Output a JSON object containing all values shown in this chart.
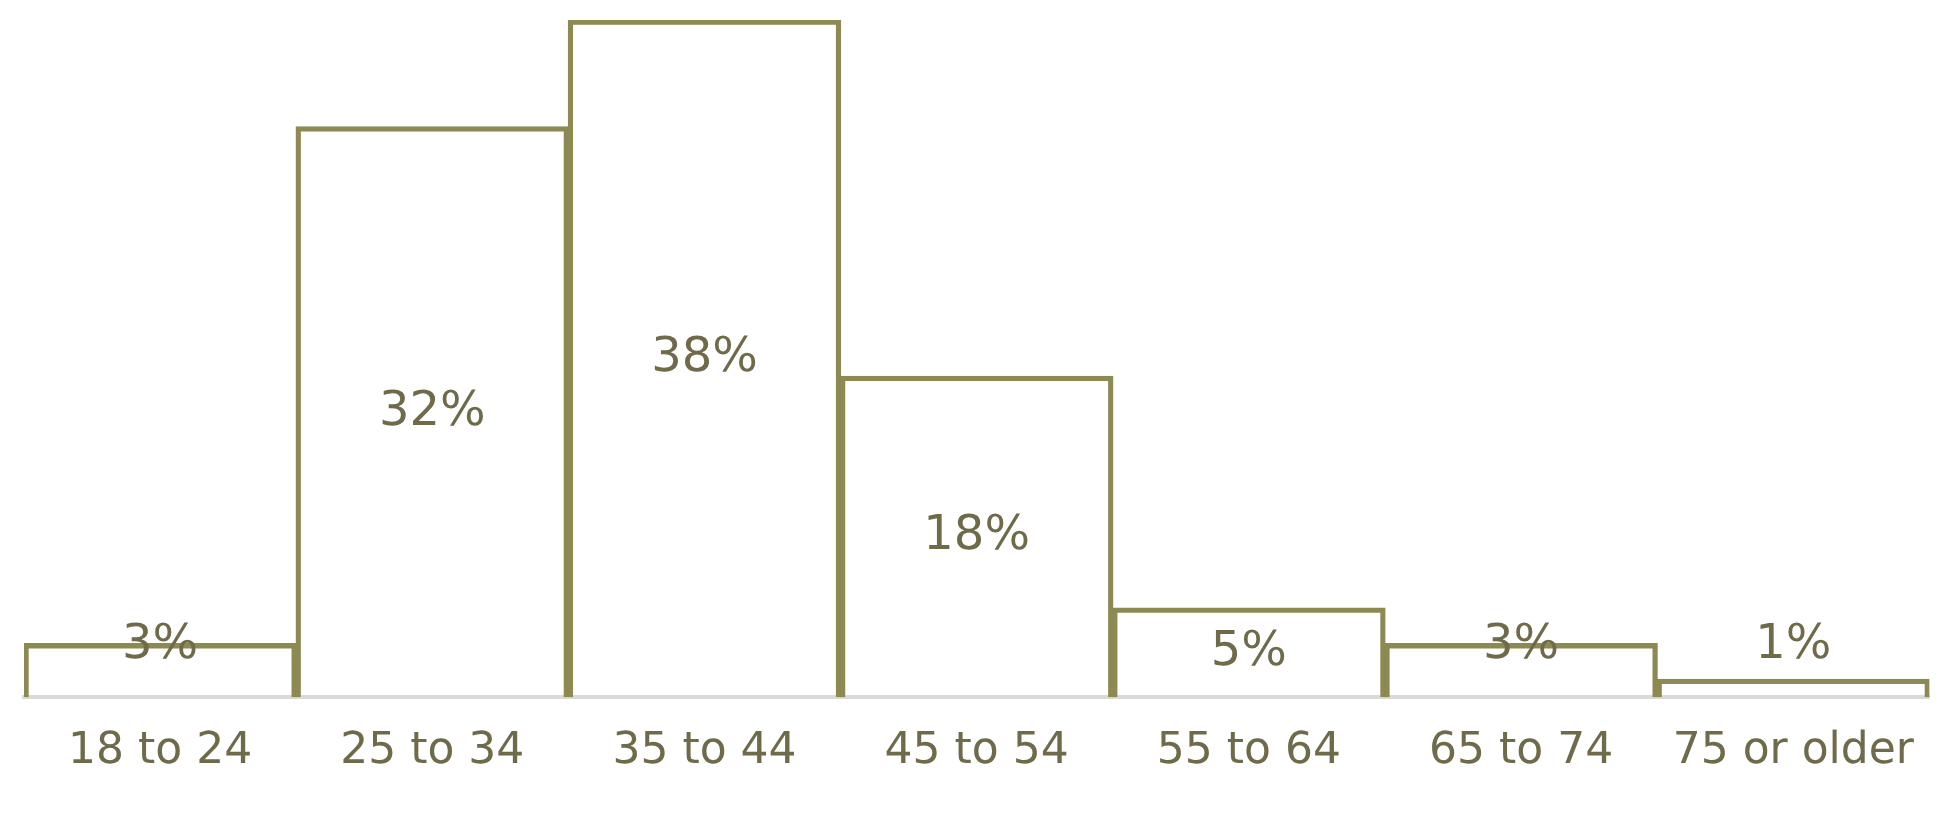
{
  "chart_data": {
    "type": "bar",
    "categories": [
      "18 to 24",
      "25 to 34",
      "35 to 44",
      "45 to 54",
      "55 to 64",
      "65 to 74",
      "75 or older"
    ],
    "values": [
      3,
      32,
      38,
      18,
      5,
      3,
      1
    ],
    "color": "#8c8a52",
    "value_labels": [
      "3%",
      "32%",
      "38%",
      "18%",
      "5%",
      "3%",
      "1%"
    ],
    "tick_labels": "x"
  }
}
